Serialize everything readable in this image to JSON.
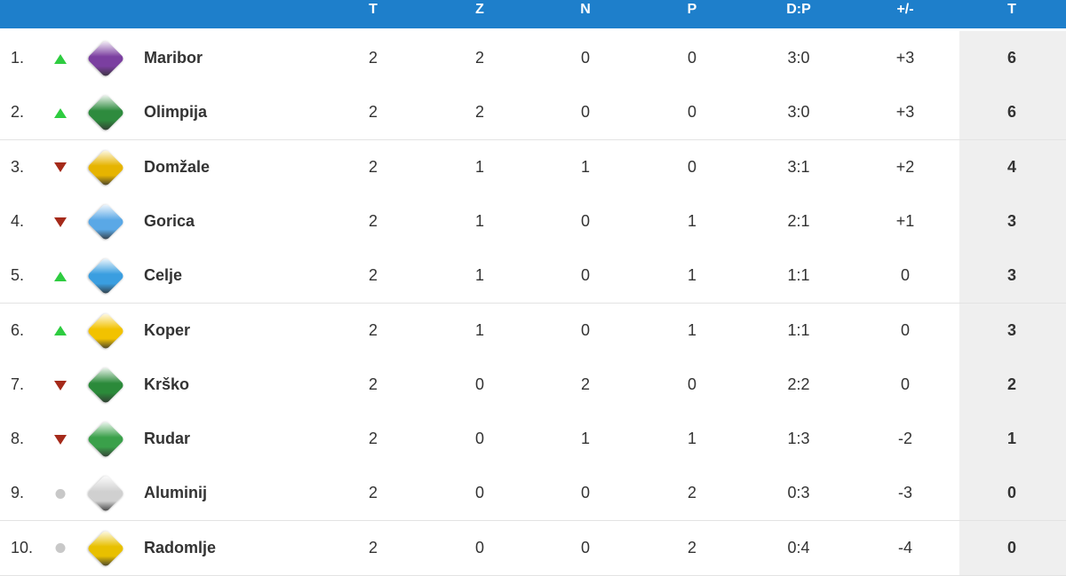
{
  "header": {
    "columns": [
      "T",
      "Z",
      "N",
      "P",
      "D:P",
      "+/-",
      "T"
    ]
  },
  "colors": {
    "header_bg": "#1e7fcb",
    "trend_up": "#2ecc40",
    "trend_down": "#a52a1a",
    "trend_same": "#c8c8c8",
    "points_bg": "#efefef"
  },
  "rows": [
    {
      "pos": "1.",
      "trend": "up",
      "team": "Maribor",
      "crest": "maribor-crest-icon",
      "crest_color": "#7b3fa0",
      "played": "2",
      "won": "2",
      "drawn": "0",
      "lost": "0",
      "goals": "3:0",
      "diff": "+3",
      "points": "6"
    },
    {
      "pos": "2.",
      "trend": "up",
      "team": "Olimpija",
      "crest": "olimpija-crest-icon",
      "crest_color": "#2e8b3e",
      "played": "2",
      "won": "2",
      "drawn": "0",
      "lost": "0",
      "goals": "3:0",
      "diff": "+3",
      "points": "6"
    },
    {
      "pos": "3.",
      "trend": "down",
      "team": "Domžale",
      "crest": "domzale-crest-icon",
      "crest_color": "#e6b400",
      "played": "2",
      "won": "1",
      "drawn": "1",
      "lost": "0",
      "goals": "3:1",
      "diff": "+2",
      "points": "4"
    },
    {
      "pos": "4.",
      "trend": "down",
      "team": "Gorica",
      "crest": "gorica-crest-icon",
      "crest_color": "#5aa8e6",
      "played": "2",
      "won": "1",
      "drawn": "0",
      "lost": "1",
      "goals": "2:1",
      "diff": "+1",
      "points": "3"
    },
    {
      "pos": "5.",
      "trend": "up",
      "team": "Celje",
      "crest": "celje-crest-icon",
      "crest_color": "#3a9ee0",
      "played": "2",
      "won": "1",
      "drawn": "0",
      "lost": "1",
      "goals": "1:1",
      "diff": "0",
      "points": "3"
    },
    {
      "pos": "6.",
      "trend": "up",
      "team": "Koper",
      "crest": "koper-crest-icon",
      "crest_color": "#f2c200",
      "played": "2",
      "won": "1",
      "drawn": "0",
      "lost": "1",
      "goals": "1:1",
      "diff": "0",
      "points": "3"
    },
    {
      "pos": "7.",
      "trend": "down",
      "team": "Krško",
      "crest": "krsko-crest-icon",
      "crest_color": "#2b8a3a",
      "played": "2",
      "won": "0",
      "drawn": "2",
      "lost": "0",
      "goals": "2:2",
      "diff": "0",
      "points": "2"
    },
    {
      "pos": "8.",
      "trend": "down",
      "team": "Rudar",
      "crest": "rudar-crest-icon",
      "crest_color": "#3aa04a",
      "played": "2",
      "won": "0",
      "drawn": "1",
      "lost": "1",
      "goals": "1:3",
      "diff": "-2",
      "points": "1"
    },
    {
      "pos": "9.",
      "trend": "same",
      "team": "Aluminij",
      "crest": "aluminij-crest-icon",
      "crest_color": "#d0d0d0",
      "played": "2",
      "won": "0",
      "drawn": "0",
      "lost": "2",
      "goals": "0:3",
      "diff": "-3",
      "points": "0"
    },
    {
      "pos": "10.",
      "trend": "same",
      "team": "Radomlje",
      "crest": "radomlje-crest-icon",
      "crest_color": "#e8c000",
      "played": "2",
      "won": "0",
      "drawn": "0",
      "lost": "2",
      "goals": "0:4",
      "diff": "-4",
      "points": "0"
    }
  ]
}
